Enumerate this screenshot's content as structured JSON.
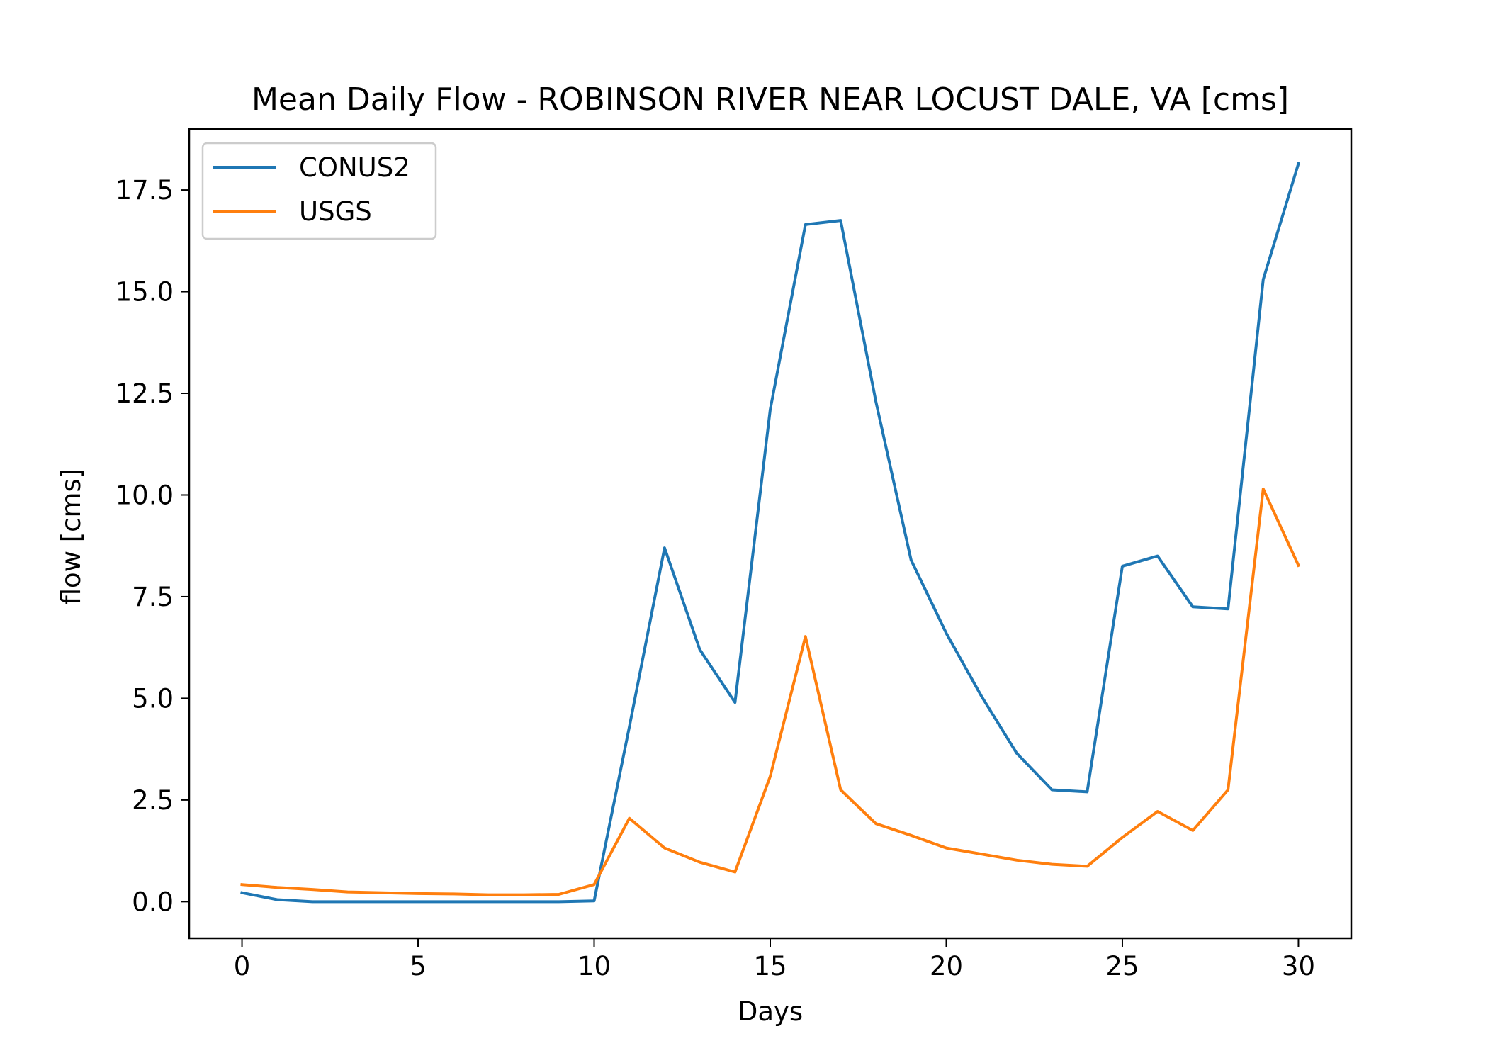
{
  "chart_data": {
    "type": "line",
    "title": "Mean Daily Flow - ROBINSON RIVER NEAR LOCUST DALE, VA [cms]",
    "xlabel": "Days",
    "ylabel": "flow [cms]",
    "xlim": [
      -1.5,
      31.5
    ],
    "ylim": [
      -0.9,
      19.0
    ],
    "xticks": [
      0,
      5,
      10,
      15,
      20,
      25,
      30
    ],
    "yticks": [
      0.0,
      2.5,
      5.0,
      7.5,
      10.0,
      12.5,
      15.0,
      17.5
    ],
    "xtick_labels": [
      "0",
      "5",
      "10",
      "15",
      "20",
      "25",
      "30"
    ],
    "ytick_labels": [
      "0.0",
      "2.5",
      "5.0",
      "7.5",
      "10.0",
      "12.5",
      "15.0",
      "17.5"
    ],
    "grid": false,
    "legend_position": "top-left",
    "x": [
      0,
      1,
      2,
      3,
      4,
      5,
      6,
      7,
      8,
      9,
      10,
      11,
      12,
      13,
      14,
      15,
      16,
      17,
      18,
      19,
      20,
      21,
      22,
      23,
      24,
      25,
      26,
      27,
      28,
      29,
      30
    ],
    "series": [
      {
        "name": "CONUS2",
        "color": "#1f77b4",
        "values": [
          0.22,
          0.05,
          0.0,
          0.0,
          0.0,
          0.0,
          0.0,
          0.0,
          0.0,
          0.0,
          0.02,
          4.3,
          8.7,
          6.2,
          4.9,
          12.1,
          16.65,
          16.75,
          12.3,
          8.4,
          6.6,
          5.05,
          3.65,
          2.75,
          2.7,
          8.25,
          8.5,
          7.25,
          7.2,
          15.3,
          18.15
        ]
      },
      {
        "name": "USGS",
        "color": "#ff7f0e",
        "values": [
          0.42,
          0.35,
          0.3,
          0.24,
          0.22,
          0.2,
          0.19,
          0.17,
          0.17,
          0.18,
          0.42,
          2.05,
          1.32,
          0.97,
          0.73,
          3.08,
          6.52,
          2.75,
          1.92,
          1.63,
          1.32,
          1.17,
          1.02,
          0.92,
          0.87,
          1.58,
          2.22,
          1.75,
          2.75,
          10.15,
          8.27
        ]
      }
    ]
  }
}
